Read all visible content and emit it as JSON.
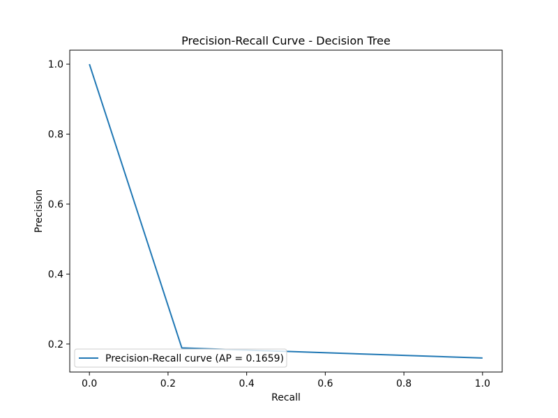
{
  "chart_data": {
    "type": "line",
    "title": "Precision-Recall Curve - Decision Tree",
    "xlabel": "Recall",
    "ylabel": "Precision",
    "xlim": [
      -0.05,
      1.05
    ],
    "ylim": [
      0.12,
      1.04
    ],
    "xticks": [
      0.0,
      0.2,
      0.4,
      0.6,
      0.8,
      1.0
    ],
    "xtick_labels": [
      "0.0",
      "0.2",
      "0.4",
      "0.6",
      "0.8",
      "1.0"
    ],
    "yticks": [
      0.2,
      0.4,
      0.6,
      0.8,
      1.0
    ],
    "ytick_labels": [
      "0.2",
      "0.4",
      "0.6",
      "0.8",
      "1.0"
    ],
    "grid": false,
    "legend_position": "lower-left",
    "series": [
      {
        "name": "Precision-Recall curve (AP = 0.1659)",
        "color": "#1f77b4",
        "x": [
          0.0,
          0.235,
          1.0
        ],
        "y": [
          1.0,
          0.189,
          0.16
        ]
      }
    ]
  }
}
